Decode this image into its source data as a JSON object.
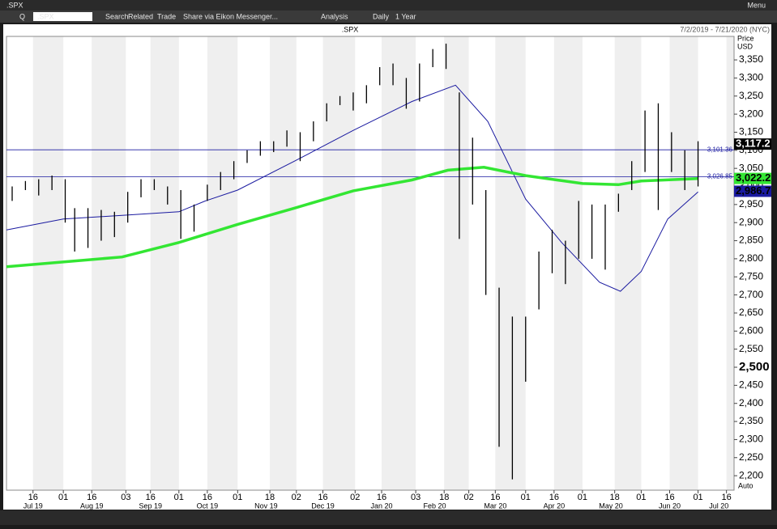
{
  "toolbar": {
    "window_title": ".SPX",
    "menu": "Menu",
    "items": [
      "Q",
      ".SPX",
      "Search",
      "Related",
      "Trade",
      "Share via Eikon Messenger...",
      "Analysis",
      "Daily",
      "1 Year"
    ]
  },
  "chart_data": {
    "type": "ohlc",
    "title": ".SPX",
    "subtitle": "7/2/2019 - 7/21/2020 (NYC)",
    "y_axis_label": "Price",
    "y_axis_unit": "USD",
    "scale_mode": "Auto",
    "xlim": [
      "2019-07-02",
      "2020-07-20"
    ],
    "x": [
      "2019-07-05",
      "2019-07-12",
      "2019-07-19",
      "2019-07-26",
      "2019-08-02",
      "2019-08-07",
      "2019-08-14",
      "2019-08-21",
      "2019-08-28",
      "2019-09-04",
      "2019-09-11",
      "2019-09-18",
      "2019-09-25",
      "2019-10-02",
      "2019-10-09",
      "2019-10-16",
      "2019-10-23",
      "2019-10-30",
      "2019-11-06",
      "2019-11-13",
      "2019-11-20",
      "2019-11-27",
      "2019-12-04",
      "2019-12-11",
      "2019-12-18",
      "2019-12-25",
      "2020-01-01",
      "2020-01-08",
      "2020-01-15",
      "2020-01-22",
      "2020-01-29",
      "2020-02-05",
      "2020-02-12",
      "2020-02-19",
      "2020-02-26",
      "2020-03-04",
      "2020-03-11",
      "2020-03-18",
      "2020-03-25",
      "2020-04-01",
      "2020-04-08",
      "2020-04-15",
      "2020-04-22",
      "2020-04-29",
      "2020-05-06",
      "2020-05-13",
      "2020-05-20",
      "2020-05-27",
      "2020-06-03",
      "2020-06-10",
      "2020-06-17",
      "2020-06-24",
      "2020-07-01"
    ],
    "high": [
      3000,
      3015,
      3020,
      3030,
      3020,
      2940,
      2940,
      2935,
      2930,
      2985,
      3020,
      3020,
      3000,
      2990,
      2950,
      3005,
      3040,
      3070,
      3100,
      3125,
      3125,
      3155,
      3150,
      3180,
      3230,
      3250,
      3260,
      3280,
      3330,
      3340,
      3300,
      3340,
      3380,
      3395,
      3260,
      3135,
      2990,
      2720,
      2640,
      2640,
      2820,
      2880,
      2850,
      2960,
      2950,
      2950,
      2980,
      3070,
      3210,
      3230,
      3150,
      3100,
      3125
    ],
    "low": [
      2960,
      2990,
      2975,
      2990,
      2900,
      2820,
      2830,
      2850,
      2860,
      2900,
      2970,
      2990,
      2950,
      2855,
      2875,
      2960,
      2990,
      3020,
      3065,
      3085,
      3095,
      3110,
      3070,
      3125,
      3180,
      3225,
      3210,
      3230,
      3280,
      3280,
      3215,
      3235,
      3330,
      3325,
      2855,
      2950,
      2700,
      2280,
      2190,
      2460,
      2660,
      2760,
      2730,
      2800,
      2800,
      2770,
      2930,
      2990,
      3040,
      2935,
      3040,
      2990,
      3000
    ],
    "overlays": [
      {
        "color": "#1a1aa0",
        "x": [
          "2019-07-02",
          "2019-08-01",
          "2019-09-01",
          "2019-10-01",
          "2019-10-15",
          "2019-11-01",
          "2019-12-01",
          "2020-01-01",
          "2020-02-01",
          "2020-02-24",
          "2020-03-12",
          "2020-04-01",
          "2020-04-20",
          "2020-05-10",
          "2020-05-21",
          "2020-06-01",
          "2020-06-15",
          "2020-07-01"
        ],
        "values": [
          2880,
          2910,
          2920,
          2930,
          2960,
          2990,
          3070,
          3155,
          3235,
          3280,
          3180,
          2965,
          2845,
          2735,
          2710,
          2765,
          2910,
          2985
        ]
      },
      {
        "color": "#33e633",
        "x": [
          "2019-07-02",
          "2019-09-01",
          "2019-10-01",
          "2019-11-01",
          "2019-12-01",
          "2020-01-01",
          "2020-02-01",
          "2020-02-20",
          "2020-03-10",
          "2020-04-01",
          "2020-05-01",
          "2020-05-20",
          "2020-06-01",
          "2020-07-01"
        ],
        "values": [
          2778,
          2805,
          2845,
          2895,
          2940,
          2988,
          3018,
          3045,
          3053,
          3030,
          3008,
          3005,
          3015,
          3022
        ]
      }
    ],
    "hlines": [
      {
        "value": 3101.36,
        "label": "3,101.36"
      },
      {
        "value": 3026.85,
        "label": "3,026.85"
      }
    ],
    "price_tags": [
      {
        "value": 3117.2,
        "label": "3,117.2",
        "color": "#000000"
      },
      {
        "value": 3022.2,
        "label": "3,022.2",
        "color": "#33e633"
      },
      {
        "value": 2986.7,
        "label": "2,986.7",
        "color": "#1a1aa0"
      }
    ],
    "ylim": [
      2160,
      3415
    ],
    "yticks": [
      {
        "value": 2200,
        "label": "2,200"
      },
      {
        "value": 2250,
        "label": "2,250"
      },
      {
        "value": 2300,
        "label": "2,300"
      },
      {
        "value": 2350,
        "label": "2,350"
      },
      {
        "value": 2400,
        "label": "2,400"
      },
      {
        "value": 2450,
        "label": "2,450"
      },
      {
        "value": 2500,
        "label": "2,500",
        "emphasis": true
      },
      {
        "value": 2550,
        "label": "2,550"
      },
      {
        "value": 2600,
        "label": "2,600"
      },
      {
        "value": 2650,
        "label": "2,650"
      },
      {
        "value": 2700,
        "label": "2,700"
      },
      {
        "value": 2750,
        "label": "2,750"
      },
      {
        "value": 2800,
        "label": "2,800"
      },
      {
        "value": 2850,
        "label": "2,850"
      },
      {
        "value": 2900,
        "label": "2,900"
      },
      {
        "value": 2950,
        "label": "2,950"
      },
      {
        "value": 3000,
        "label": "3,000"
      },
      {
        "value": 3050,
        "label": "3,050"
      },
      {
        "value": 3100,
        "label": "3,100"
      },
      {
        "value": 3150,
        "label": "3,150"
      },
      {
        "value": 3200,
        "label": "3,200"
      },
      {
        "value": 3250,
        "label": "3,250"
      },
      {
        "value": 3300,
        "label": "3,300"
      },
      {
        "value": 3350,
        "label": "3,350"
      }
    ],
    "xticks": [
      {
        "value": "2019-07-16",
        "label": "16"
      },
      {
        "value": "2019-08-01",
        "label": "01"
      },
      {
        "value": "2019-08-16",
        "label": "16"
      },
      {
        "value": "2019-09-03",
        "label": "03"
      },
      {
        "value": "2019-09-16",
        "label": "16"
      },
      {
        "value": "2019-10-01",
        "label": "01"
      },
      {
        "value": "2019-10-16",
        "label": "16"
      },
      {
        "value": "2019-11-01",
        "label": "01"
      },
      {
        "value": "2019-11-18",
        "label": "18"
      },
      {
        "value": "2019-12-02",
        "label": "02"
      },
      {
        "value": "2019-12-16",
        "label": "16"
      },
      {
        "value": "2020-01-02",
        "label": "02"
      },
      {
        "value": "2020-01-16",
        "label": "16"
      },
      {
        "value": "2020-02-03",
        "label": "03"
      },
      {
        "value": "2020-02-18",
        "label": "18"
      },
      {
        "value": "2020-03-02",
        "label": "02"
      },
      {
        "value": "2020-03-16",
        "label": "16"
      },
      {
        "value": "2020-04-01",
        "label": "01"
      },
      {
        "value": "2020-04-16",
        "label": "16"
      },
      {
        "value": "2020-05-01",
        "label": "01"
      },
      {
        "value": "2020-05-18",
        "label": "18"
      },
      {
        "value": "2020-06-01",
        "label": "01"
      },
      {
        "value": "2020-06-16",
        "label": "16"
      },
      {
        "value": "2020-07-01",
        "label": "01"
      },
      {
        "value": "2020-07-16",
        "label": "16"
      }
    ],
    "xmonths": [
      {
        "value": "2019-07-16",
        "label": "Jul 19"
      },
      {
        "value": "2019-08-16",
        "label": "Aug 19"
      },
      {
        "value": "2019-09-16",
        "label": "Sep 19"
      },
      {
        "value": "2019-10-16",
        "label": "Oct 19"
      },
      {
        "value": "2019-11-16",
        "label": "Nov 19"
      },
      {
        "value": "2019-12-16",
        "label": "Dec 19"
      },
      {
        "value": "2020-01-16",
        "label": "Jan 20"
      },
      {
        "value": "2020-02-13",
        "label": "Feb 20"
      },
      {
        "value": "2020-03-16",
        "label": "Mar 20"
      },
      {
        "value": "2020-04-16",
        "label": "Apr 20"
      },
      {
        "value": "2020-05-16",
        "label": "May 20"
      },
      {
        "value": "2020-06-16",
        "label": "Jun 20"
      },
      {
        "value": "2020-07-12",
        "label": "Jul 20"
      }
    ]
  }
}
